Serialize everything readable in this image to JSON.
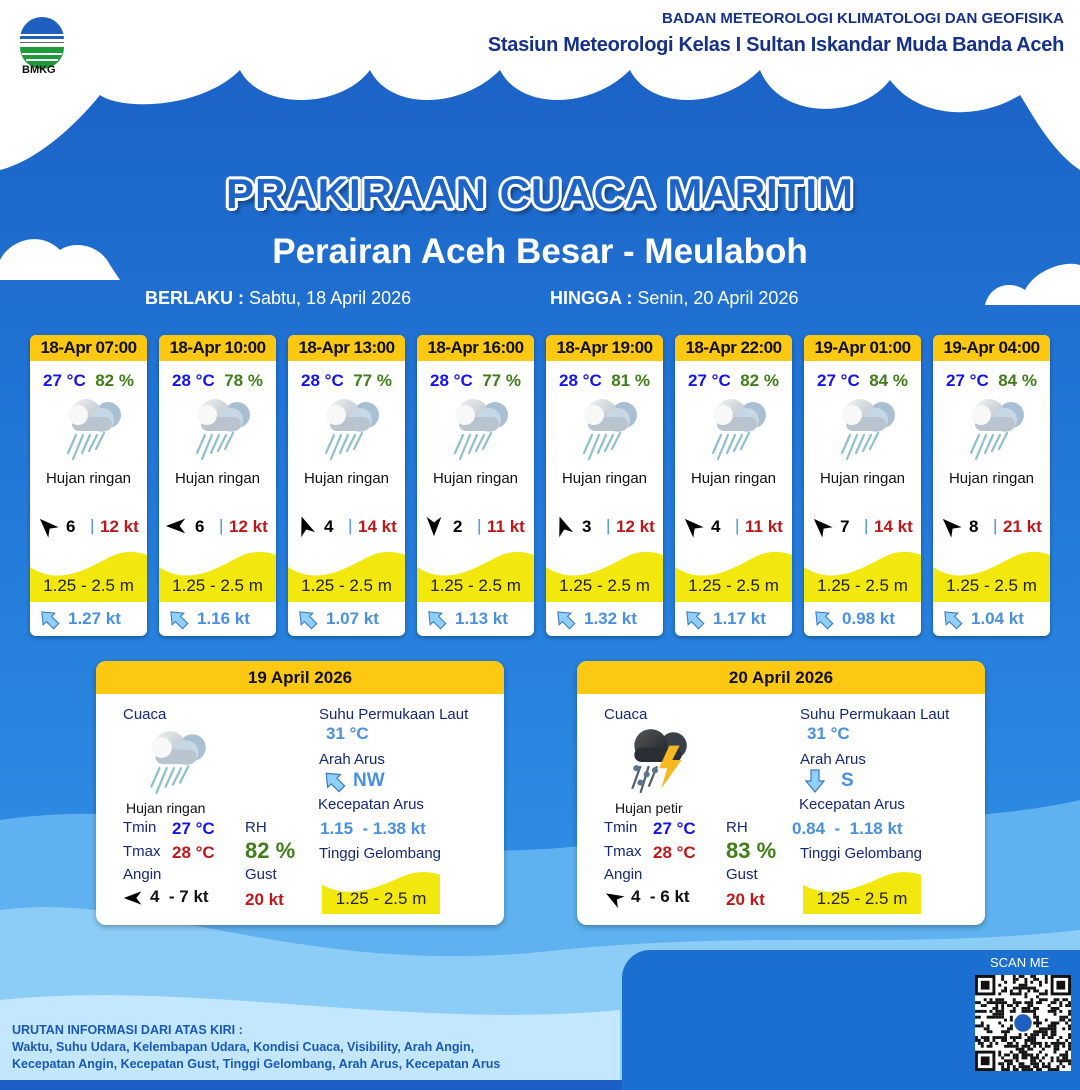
{
  "header": {
    "org": "BADAN METEOROLOGI KLIMATOLOGI DAN GEOFISIKA",
    "station": "Stasiun Meteorologi Kelas I Sultan Iskandar Muda Banda Aceh",
    "logo_text": "BMKG"
  },
  "title": "PRAKIRAAN CUACA MARITIM",
  "subtitle": "Perairan Aceh Besar - Meulaboh",
  "validity": {
    "from_label": "BERLAKU :",
    "from": "Sabtu, 18 April 2026",
    "to_label": "HINGGA :",
    "to": "Senin, 20 April 2026"
  },
  "colors": {
    "header_yellow": "#fcc812",
    "wave_yellow": "#f2e80e",
    "background_blue": "#1f6fd0"
  },
  "forecasts": [
    {
      "time": "18-Apr 07:00",
      "temp": "27 °C",
      "rh": "82 %",
      "weather": "Hujan ringan",
      "icon": "light-rain-icon",
      "wind_dir_deg": -45,
      "wind_speed": "6",
      "gust": "12 kt",
      "wave": "1.25 - 2.5 m",
      "current_dir": "NW",
      "current_speed": "1.27 kt"
    },
    {
      "time": "18-Apr 10:00",
      "temp": "28 °C",
      "rh": "78 %",
      "weather": "Hujan ringan",
      "icon": "light-rain-icon",
      "wind_dir_deg": -90,
      "wind_speed": "6",
      "gust": "12 kt",
      "wave": "1.25 - 2.5 m",
      "current_dir": "NW",
      "current_speed": "1.16 kt"
    },
    {
      "time": "18-Apr 13:00",
      "temp": "28 °C",
      "rh": "77 %",
      "weather": "Hujan ringan",
      "icon": "light-rain-icon",
      "wind_dir_deg": -20,
      "wind_speed": "4",
      "gust": "14 kt",
      "wave": "1.25 - 2.5 m",
      "current_dir": "NW",
      "current_speed": "1.07 kt"
    },
    {
      "time": "18-Apr 16:00",
      "temp": "28 °C",
      "rh": "77 %",
      "weather": "Hujan ringan",
      "icon": "light-rain-icon",
      "wind_dir_deg": 180,
      "wind_speed": "2",
      "gust": "11 kt",
      "wave": "1.25 - 2.5 m",
      "current_dir": "NW",
      "current_speed": "1.13 kt"
    },
    {
      "time": "18-Apr 19:00",
      "temp": "28 °C",
      "rh": "81 %",
      "weather": "Hujan ringan",
      "icon": "light-rain-icon",
      "wind_dir_deg": -20,
      "wind_speed": "3",
      "gust": "12 kt",
      "wave": "1.25 - 2.5 m",
      "current_dir": "NW",
      "current_speed": "1.32 kt"
    },
    {
      "time": "18-Apr 22:00",
      "temp": "27 °C",
      "rh": "82 %",
      "weather": "Hujan ringan",
      "icon": "light-rain-icon",
      "wind_dir_deg": -45,
      "wind_speed": "4",
      "gust": "11 kt",
      "wave": "1.25 - 2.5 m",
      "current_dir": "NW",
      "current_speed": "1.17 kt"
    },
    {
      "time": "19-Apr 01:00",
      "temp": "27 °C",
      "rh": "84 %",
      "weather": "Hujan ringan",
      "icon": "light-rain-icon",
      "wind_dir_deg": -45,
      "wind_speed": "7",
      "gust": "14 kt",
      "wave": "1.25 - 2.5 m",
      "current_dir": "NW",
      "current_speed": "0.98 kt"
    },
    {
      "time": "19-Apr 04:00",
      "temp": "27 °C",
      "rh": "84 %",
      "weather": "Hujan ringan",
      "icon": "light-rain-icon",
      "wind_dir_deg": -45,
      "wind_speed": "8",
      "gust": "21 kt",
      "wave": "1.25 - 2.5 m",
      "current_dir": "NW",
      "current_speed": "1.04 kt"
    }
  ],
  "labels": {
    "weather": "Cuaca",
    "tmin": "Tmin",
    "tmax": "Tmax",
    "wind": "Angin",
    "rh": "RH",
    "gust": "Gust",
    "sst": "Suhu Permukaan Laut",
    "current_dir": "Arah Arus",
    "current_speed": "Kecepatan Arus",
    "wave": "Tinggi Gelombang"
  },
  "daily": [
    {
      "date": "19 April 2026",
      "weather": "Hujan ringan",
      "icon": "light-rain-icon",
      "tmin": "27 °C",
      "tmax": "28 °C",
      "rh": "82 %",
      "wind": "4  - 7 kt",
      "wind_dir_deg": -90,
      "gust": "20 kt",
      "sst": "31 °C",
      "current_dir": "NW",
      "current_dir_deg": -45,
      "current_speed": "1.15  - 1.38 kt",
      "wave": "1.25 - 2.5 m"
    },
    {
      "date": "20 April 2026",
      "weather": "Hujan petir",
      "icon": "thunderstorm-icon",
      "tmin": "27 °C",
      "tmax": "28 °C",
      "rh": "83 %",
      "wind": "4  - 6 kt",
      "wind_dir_deg": -60,
      "gust": "20 kt",
      "sst": "31 °C",
      "current_dir": "S",
      "current_dir_deg": 180,
      "current_speed": "0.84  -  1.18 kt",
      "wave": "1.25 - 2.5 m"
    }
  ],
  "footer": {
    "heading": "URUTAN INFORMASI DARI ATAS KIRI :",
    "line1": "Waktu, Suhu Udara, Kelembapan Udara, Kondisi Cuaca, Visibility, Arah Angin,",
    "line2": "Kecepatan Angin, Kecepatan Gust, Tinggi Gelombang, Arah Arus, Kecepatan Arus"
  },
  "qr": {
    "label": "SCAN ME"
  }
}
